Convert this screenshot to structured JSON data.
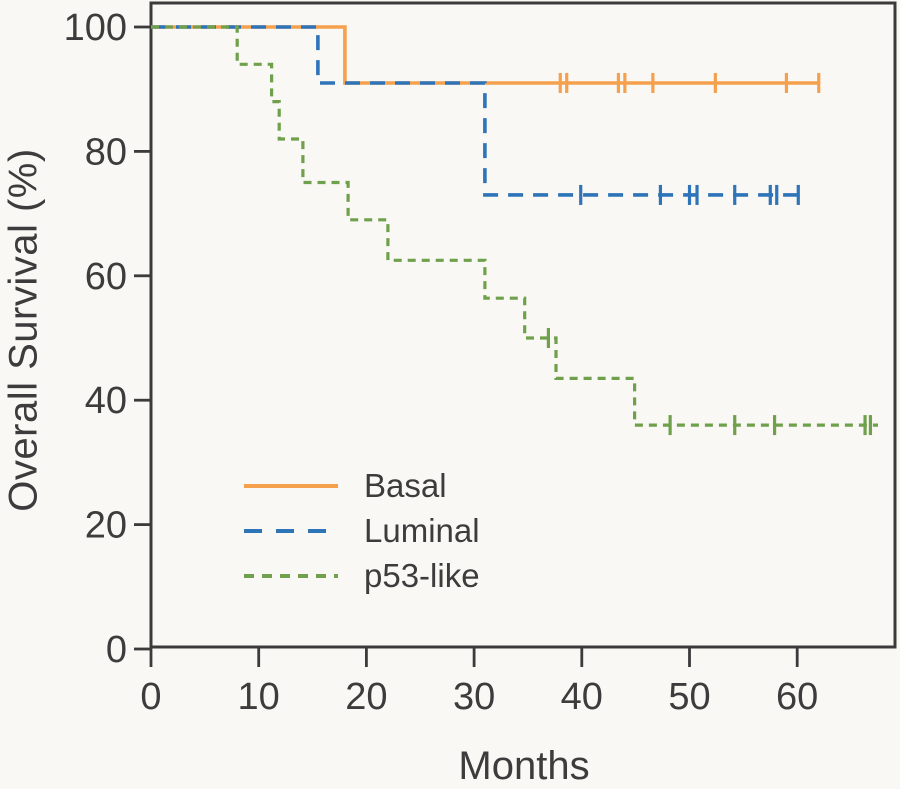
{
  "figure": {
    "background": "#FAF8F4",
    "frame_color": "#3B3B3B",
    "text_color": "#3C3C3C"
  },
  "chart_data": {
    "type": "line",
    "subtype": "kaplan-meier-step",
    "title": "",
    "xlabel": "Months",
    "ylabel": "Overall Survival (%)",
    "xlim": [
      0,
      69
    ],
    "ylim": [
      0,
      100
    ],
    "xticks": [
      0,
      10,
      20,
      30,
      40,
      50,
      60
    ],
    "yticks": [
      0,
      20,
      40,
      60,
      80,
      100
    ],
    "grid": false,
    "legend_position": "inside-lower-left",
    "series": [
      {
        "name": "Basal",
        "color": "#F5A04C",
        "line_style": "solid",
        "dash": "",
        "points": [
          [
            0,
            100
          ],
          [
            18,
            100
          ],
          [
            18,
            91
          ],
          [
            62,
            91
          ]
        ],
        "censor_marks": [
          [
            38,
            91
          ],
          [
            38.6,
            91
          ],
          [
            43.4,
            91
          ],
          [
            44,
            91
          ],
          [
            46.6,
            91
          ],
          [
            52.4,
            91
          ],
          [
            59,
            91
          ],
          [
            62,
            91
          ]
        ]
      },
      {
        "name": "Luminal",
        "color": "#2E74B8",
        "line_style": "long-dash",
        "dash": "15 10",
        "points": [
          [
            0,
            100
          ],
          [
            15.5,
            100
          ],
          [
            15.5,
            91
          ],
          [
            31,
            91
          ],
          [
            31,
            73
          ],
          [
            60.8,
            73
          ]
        ],
        "censor_marks": [
          [
            39.9,
            73
          ],
          [
            47.3,
            73
          ],
          [
            50,
            73
          ],
          [
            50.7,
            73
          ],
          [
            54.2,
            73
          ],
          [
            57.5,
            73
          ],
          [
            58.1,
            73
          ],
          [
            60.1,
            73
          ]
        ]
      },
      {
        "name": "p53-like",
        "color": "#6FA04B",
        "line_style": "short-dash",
        "dash": "8 6",
        "points": [
          [
            0,
            100
          ],
          [
            8,
            100
          ],
          [
            8,
            94
          ],
          [
            11.2,
            94
          ],
          [
            11.2,
            88
          ],
          [
            11.9,
            88
          ],
          [
            11.9,
            82
          ],
          [
            14.1,
            82
          ],
          [
            14.1,
            75
          ],
          [
            18.3,
            75
          ],
          [
            18.3,
            69
          ],
          [
            22,
            69
          ],
          [
            22,
            62.5
          ],
          [
            31,
            62.5
          ],
          [
            31,
            56.4
          ],
          [
            34.7,
            56.4
          ],
          [
            34.7,
            50
          ],
          [
            37.6,
            50
          ],
          [
            37.6,
            43.5
          ],
          [
            44.9,
            43.5
          ],
          [
            44.9,
            36
          ],
          [
            67.5,
            36
          ]
        ],
        "censor_marks": [
          [
            36.9,
            50
          ],
          [
            48.2,
            36
          ],
          [
            54.2,
            36
          ],
          [
            57.9,
            36
          ],
          [
            66.3,
            36
          ],
          [
            66.8,
            36
          ]
        ]
      }
    ]
  }
}
